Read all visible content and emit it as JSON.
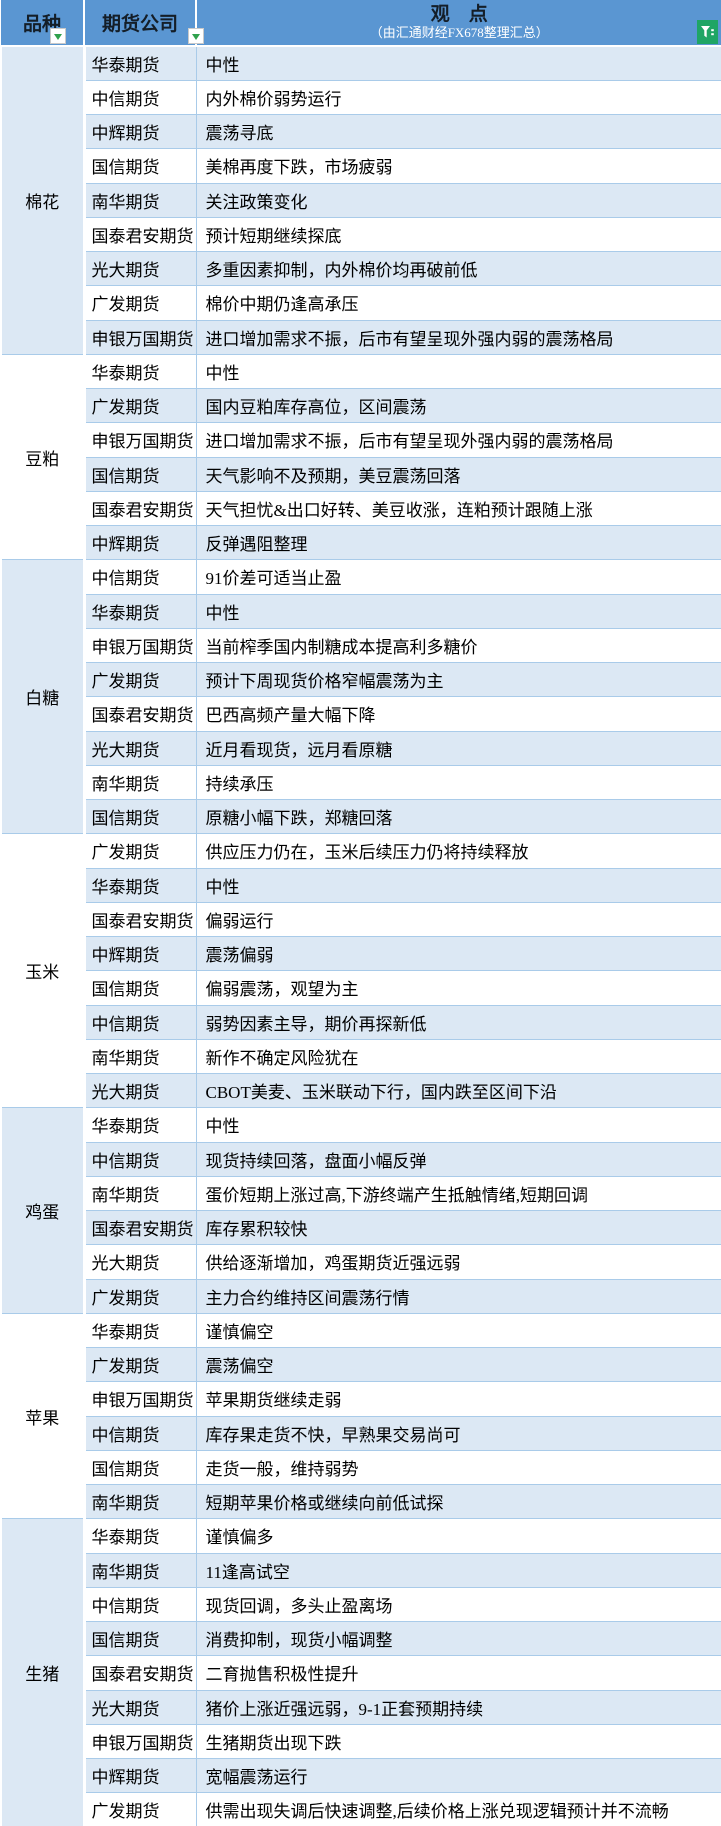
{
  "header": {
    "variety_label": "品种",
    "company_label": "期货公司",
    "opinion_title": "观　点",
    "opinion_subtitle": "（由汇通财经FX678整理汇总）"
  },
  "icons": {
    "filter_dropdown": "green-triangle-down",
    "filter_funnel": "white-funnel-on-green"
  },
  "colors": {
    "header_bg": "#5A96D2",
    "band_row": "#DCE8F4",
    "plain_row": "#FFFFFF",
    "grid_border": "#A9CBE9",
    "dropdown_green": "#2FA14C",
    "funnel_green": "#1FA565",
    "subtitle_text": "#FFFFFF"
  },
  "sections": [
    {
      "variety": "棉花",
      "rows": [
        {
          "company": "华泰期货",
          "opinion": "中性"
        },
        {
          "company": "中信期货",
          "opinion": "内外棉价弱势运行"
        },
        {
          "company": "中辉期货",
          "opinion": "震荡寻底"
        },
        {
          "company": "国信期货",
          "opinion": "美棉再度下跌，市场疲弱"
        },
        {
          "company": "南华期货",
          "opinion": "关注政策变化"
        },
        {
          "company": "国泰君安期货",
          "opinion": "预计短期继续探底"
        },
        {
          "company": "光大期货",
          "opinion": "多重因素抑制，内外棉价均再破前低"
        },
        {
          "company": "广发期货",
          "opinion": "棉价中期仍逢高承压"
        },
        {
          "company": "申银万国期货",
          "opinion": "进口增加需求不振，后市有望呈现外强内弱的震荡格局"
        }
      ]
    },
    {
      "variety": "豆粕",
      "rows": [
        {
          "company": "华泰期货",
          "opinion": "中性"
        },
        {
          "company": "广发期货",
          "opinion": "国内豆粕库存高位，区间震荡"
        },
        {
          "company": "申银万国期货",
          "opinion": "进口增加需求不振，后市有望呈现外强内弱的震荡格局"
        },
        {
          "company": "国信期货",
          "opinion": "天气影响不及预期，美豆震荡回落"
        },
        {
          "company": "国泰君安期货",
          "opinion": "天气担忧&出口好转、美豆收涨，连粕预计跟随上涨"
        },
        {
          "company": "中辉期货",
          "opinion": "反弹遇阻整理"
        }
      ]
    },
    {
      "variety": "白糖",
      "rows": [
        {
          "company": "中信期货",
          "opinion": "91价差可适当止盈"
        },
        {
          "company": "华泰期货",
          "opinion": "中性"
        },
        {
          "company": "申银万国期货",
          "opinion": "当前榨季国内制糖成本提高利多糖价"
        },
        {
          "company": "广发期货",
          "opinion": "预计下周现货价格窄幅震荡为主"
        },
        {
          "company": "国泰君安期货",
          "opinion": "巴西高频产量大幅下降"
        },
        {
          "company": "光大期货",
          "opinion": "近月看现货，远月看原糖"
        },
        {
          "company": "南华期货",
          "opinion": "持续承压"
        },
        {
          "company": "国信期货",
          "opinion": "原糖小幅下跌，郑糖回落"
        }
      ]
    },
    {
      "variety": "玉米",
      "rows": [
        {
          "company": "广发期货",
          "opinion": "供应压力仍在，玉米后续压力仍将持续释放"
        },
        {
          "company": "华泰期货",
          "opinion": "中性"
        },
        {
          "company": "国泰君安期货",
          "opinion": "偏弱运行"
        },
        {
          "company": "中辉期货",
          "opinion": "震荡偏弱"
        },
        {
          "company": "国信期货",
          "opinion": "偏弱震荡，观望为主"
        },
        {
          "company": "中信期货",
          "opinion": "弱势因素主导，期价再探新低"
        },
        {
          "company": "南华期货",
          "opinion": "新作不确定风险犹在"
        },
        {
          "company": "光大期货",
          "opinion": "CBOT美麦、玉米联动下行，国内跌至区间下沿"
        }
      ]
    },
    {
      "variety": "鸡蛋",
      "rows": [
        {
          "company": "华泰期货",
          "opinion": "中性"
        },
        {
          "company": "中信期货",
          "opinion": "现货持续回落，盘面小幅反弹"
        },
        {
          "company": "南华期货",
          "opinion": "蛋价短期上涨过高,下游终端产生抵触情绪,短期回调"
        },
        {
          "company": "国泰君安期货",
          "opinion": "库存累积较快"
        },
        {
          "company": "光大期货",
          "opinion": "供给逐渐增加，鸡蛋期货近强远弱"
        },
        {
          "company": "广发期货",
          "opinion": "主力合约维持区间震荡行情"
        }
      ]
    },
    {
      "variety": "苹果",
      "rows": [
        {
          "company": "华泰期货",
          "opinion": "谨慎偏空"
        },
        {
          "company": "广发期货",
          "opinion": "震荡偏空"
        },
        {
          "company": "申银万国期货",
          "opinion": "苹果期货继续走弱"
        },
        {
          "company": "中信期货",
          "opinion": "库存果走货不快，早熟果交易尚可"
        },
        {
          "company": "国信期货",
          "opinion": "走货一般，维持弱势"
        },
        {
          "company": "南华期货",
          "opinion": "短期苹果价格或继续向前低试探"
        }
      ]
    },
    {
      "variety": "生猪",
      "rows": [
        {
          "company": "华泰期货",
          "opinion": "谨慎偏多"
        },
        {
          "company": "南华期货",
          "opinion": "11逢高试空"
        },
        {
          "company": "中信期货",
          "opinion": "现货回调，多头止盈离场"
        },
        {
          "company": "国信期货",
          "opinion": "消费抑制，现货小幅调整"
        },
        {
          "company": "国泰君安期货",
          "opinion": "二育抛售积极性提升"
        },
        {
          "company": "光大期货",
          "opinion": "猪价上涨近强远弱，9-1正套预期持续"
        },
        {
          "company": "申银万国期货",
          "opinion": "生猪期货出现下跌"
        },
        {
          "company": "中辉期货",
          "opinion": "宽幅震荡运行"
        },
        {
          "company": "广发期货",
          "opinion": "供需出现失调后快速调整,后续价格上涨兑现逻辑预计并不流畅"
        }
      ]
    }
  ]
}
